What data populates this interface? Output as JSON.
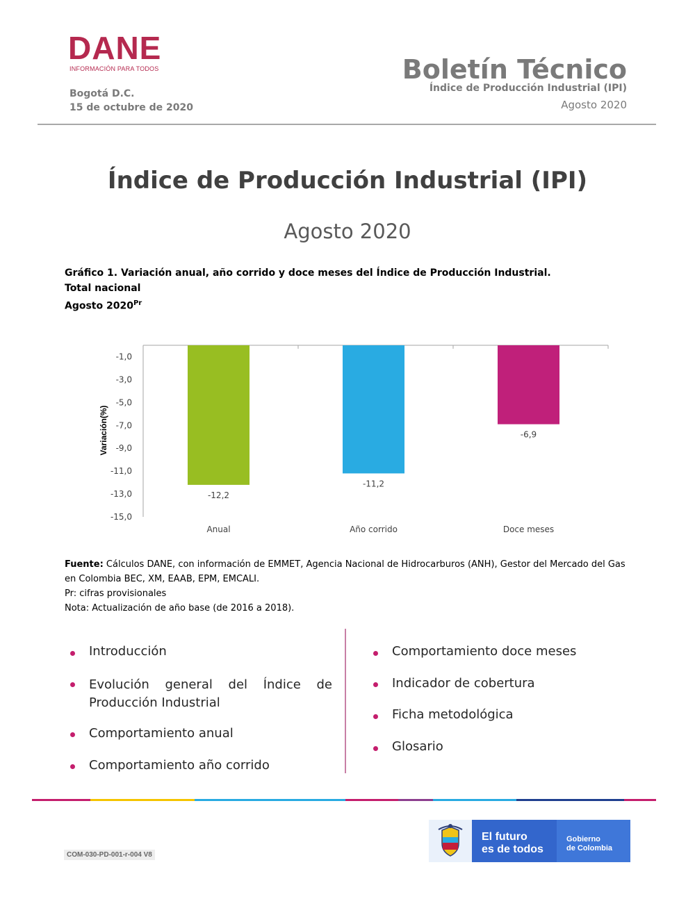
{
  "header": {
    "logo_text": "DANE",
    "logo_tagline": "INFORMACIÓN PARA TODOS",
    "city": "Bogotá D.C.",
    "date": "15 de octubre de 2020",
    "bulletin_title": "Boletín Técnico",
    "bulletin_subtitle": "Índice de Producción Industrial (IPI)",
    "bulletin_period": "Agosto 2020"
  },
  "main": {
    "title": "Índice de Producción Industrial (IPI)",
    "period": "Agosto 2020"
  },
  "figure": {
    "caption_line1": "Gráfico 1. Variación anual, año corrido y doce meses del Índice de Producción Industrial.",
    "caption_line2": "Total nacional",
    "caption_line3": "Agosto 2020",
    "caption_sup": "Pr"
  },
  "chart_data": {
    "type": "bar",
    "categories": [
      "Anual",
      "Año corrido",
      "Doce meses"
    ],
    "values": [
      -12.2,
      -11.2,
      -6.9
    ],
    "value_labels": [
      "-12,2",
      "-11,2",
      "-6,9"
    ],
    "colors": [
      "#98be22",
      "#29abe2",
      "#c0207a"
    ],
    "ylabel": "Variación(%)",
    "xlabel": "",
    "ylim": [
      -15,
      0
    ],
    "yticks": [
      -1,
      -3,
      -5,
      -7,
      -9,
      -11,
      -13,
      -15
    ],
    "ytick_labels": [
      "-1,0",
      "-3,0",
      "-5,0",
      "-7,0",
      "-9,0",
      "-11,0",
      "-13,0",
      "-15,0"
    ],
    "grid": false
  },
  "notes": {
    "source_label": "Fuente:",
    "source_text": " Cálculos DANE, con información de EMMET, Agencia Nacional de Hidrocarburos (ANH), Gestor del Mercado del Gas en Colombia BEC, XM, EAAB, EPM, EMCALI.",
    "pr_note": "Pr: cifras provisionales",
    "base_note": "Nota: Actualización de año base (de 2016 a 2018)."
  },
  "toc": {
    "left": [
      "Introducción",
      "Evolución general del Índice de Producción Industrial",
      "Comportamiento anual",
      "Comportamiento año corrido"
    ],
    "right": [
      "Comportamiento doce meses",
      "Indicador de cobertura",
      "Ficha metodológica",
      "Glosario"
    ]
  },
  "footer": {
    "code": "COM-030-PD-001-r-004 V8",
    "gov_slogan_1": "El futuro",
    "gov_slogan_2": "es de todos",
    "gov_name_1": "Gobierno",
    "gov_name_2": "de Colombia",
    "stripe_colors": [
      "#c41e6d",
      "#f5c400",
      "#29abe2",
      "#c41e6d",
      "#8c3f8f",
      "#29abe2",
      "#1f3f8f",
      "#c41e6d"
    ]
  },
  "colors": {
    "brand": "#b5294f",
    "accent": "#c41e6d",
    "gray_text": "#7a7a7a"
  }
}
